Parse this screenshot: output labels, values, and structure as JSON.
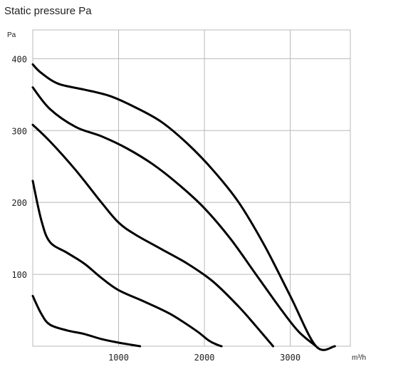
{
  "chart_data": {
    "type": "line",
    "title": "Static pressure Pa",
    "ylabel": "Pa",
    "xlabel": "m³/h",
    "xlim": [
      0,
      3700
    ],
    "ylim": [
      0,
      440
    ],
    "x_ticks": [
      1000,
      2000,
      3000
    ],
    "y_ticks": [
      100,
      200,
      300,
      400
    ],
    "grid": true,
    "series": [
      {
        "x": [
          0,
          100,
          300,
          600,
          900,
          1200,
          1500,
          1800,
          2100,
          2400,
          2700,
          3000,
          3300,
          3520
        ],
        "y": [
          392,
          380,
          365,
          357,
          348,
          332,
          312,
          282,
          245,
          200,
          140,
          70,
          0,
          0
        ]
      },
      {
        "x": [
          0,
          200,
          500,
          800,
          1100,
          1400,
          1700,
          2000,
          2300,
          2600,
          2900,
          3100,
          3300
        ],
        "y": [
          360,
          330,
          305,
          292,
          275,
          253,
          225,
          192,
          150,
          100,
          50,
          20,
          0
        ]
      },
      {
        "x": [
          0,
          200,
          500,
          800,
          1000,
          1200,
          1500,
          1800,
          2100,
          2400,
          2600,
          2800
        ],
        "y": [
          308,
          285,
          245,
          200,
          172,
          155,
          135,
          115,
          90,
          55,
          28,
          0
        ]
      },
      {
        "x": [
          0,
          100,
          200,
          400,
          600,
          800,
          1000,
          1300,
          1600,
          1900,
          2050,
          2150,
          2200
        ],
        "y": [
          230,
          175,
          145,
          130,
          115,
          95,
          78,
          62,
          45,
          22,
          8,
          2,
          0
        ]
      },
      {
        "x": [
          0,
          100,
          200,
          400,
          600,
          800,
          1000,
          1150,
          1250
        ],
        "y": [
          70,
          45,
          30,
          22,
          17,
          10,
          5,
          2,
          0
        ]
      }
    ]
  }
}
